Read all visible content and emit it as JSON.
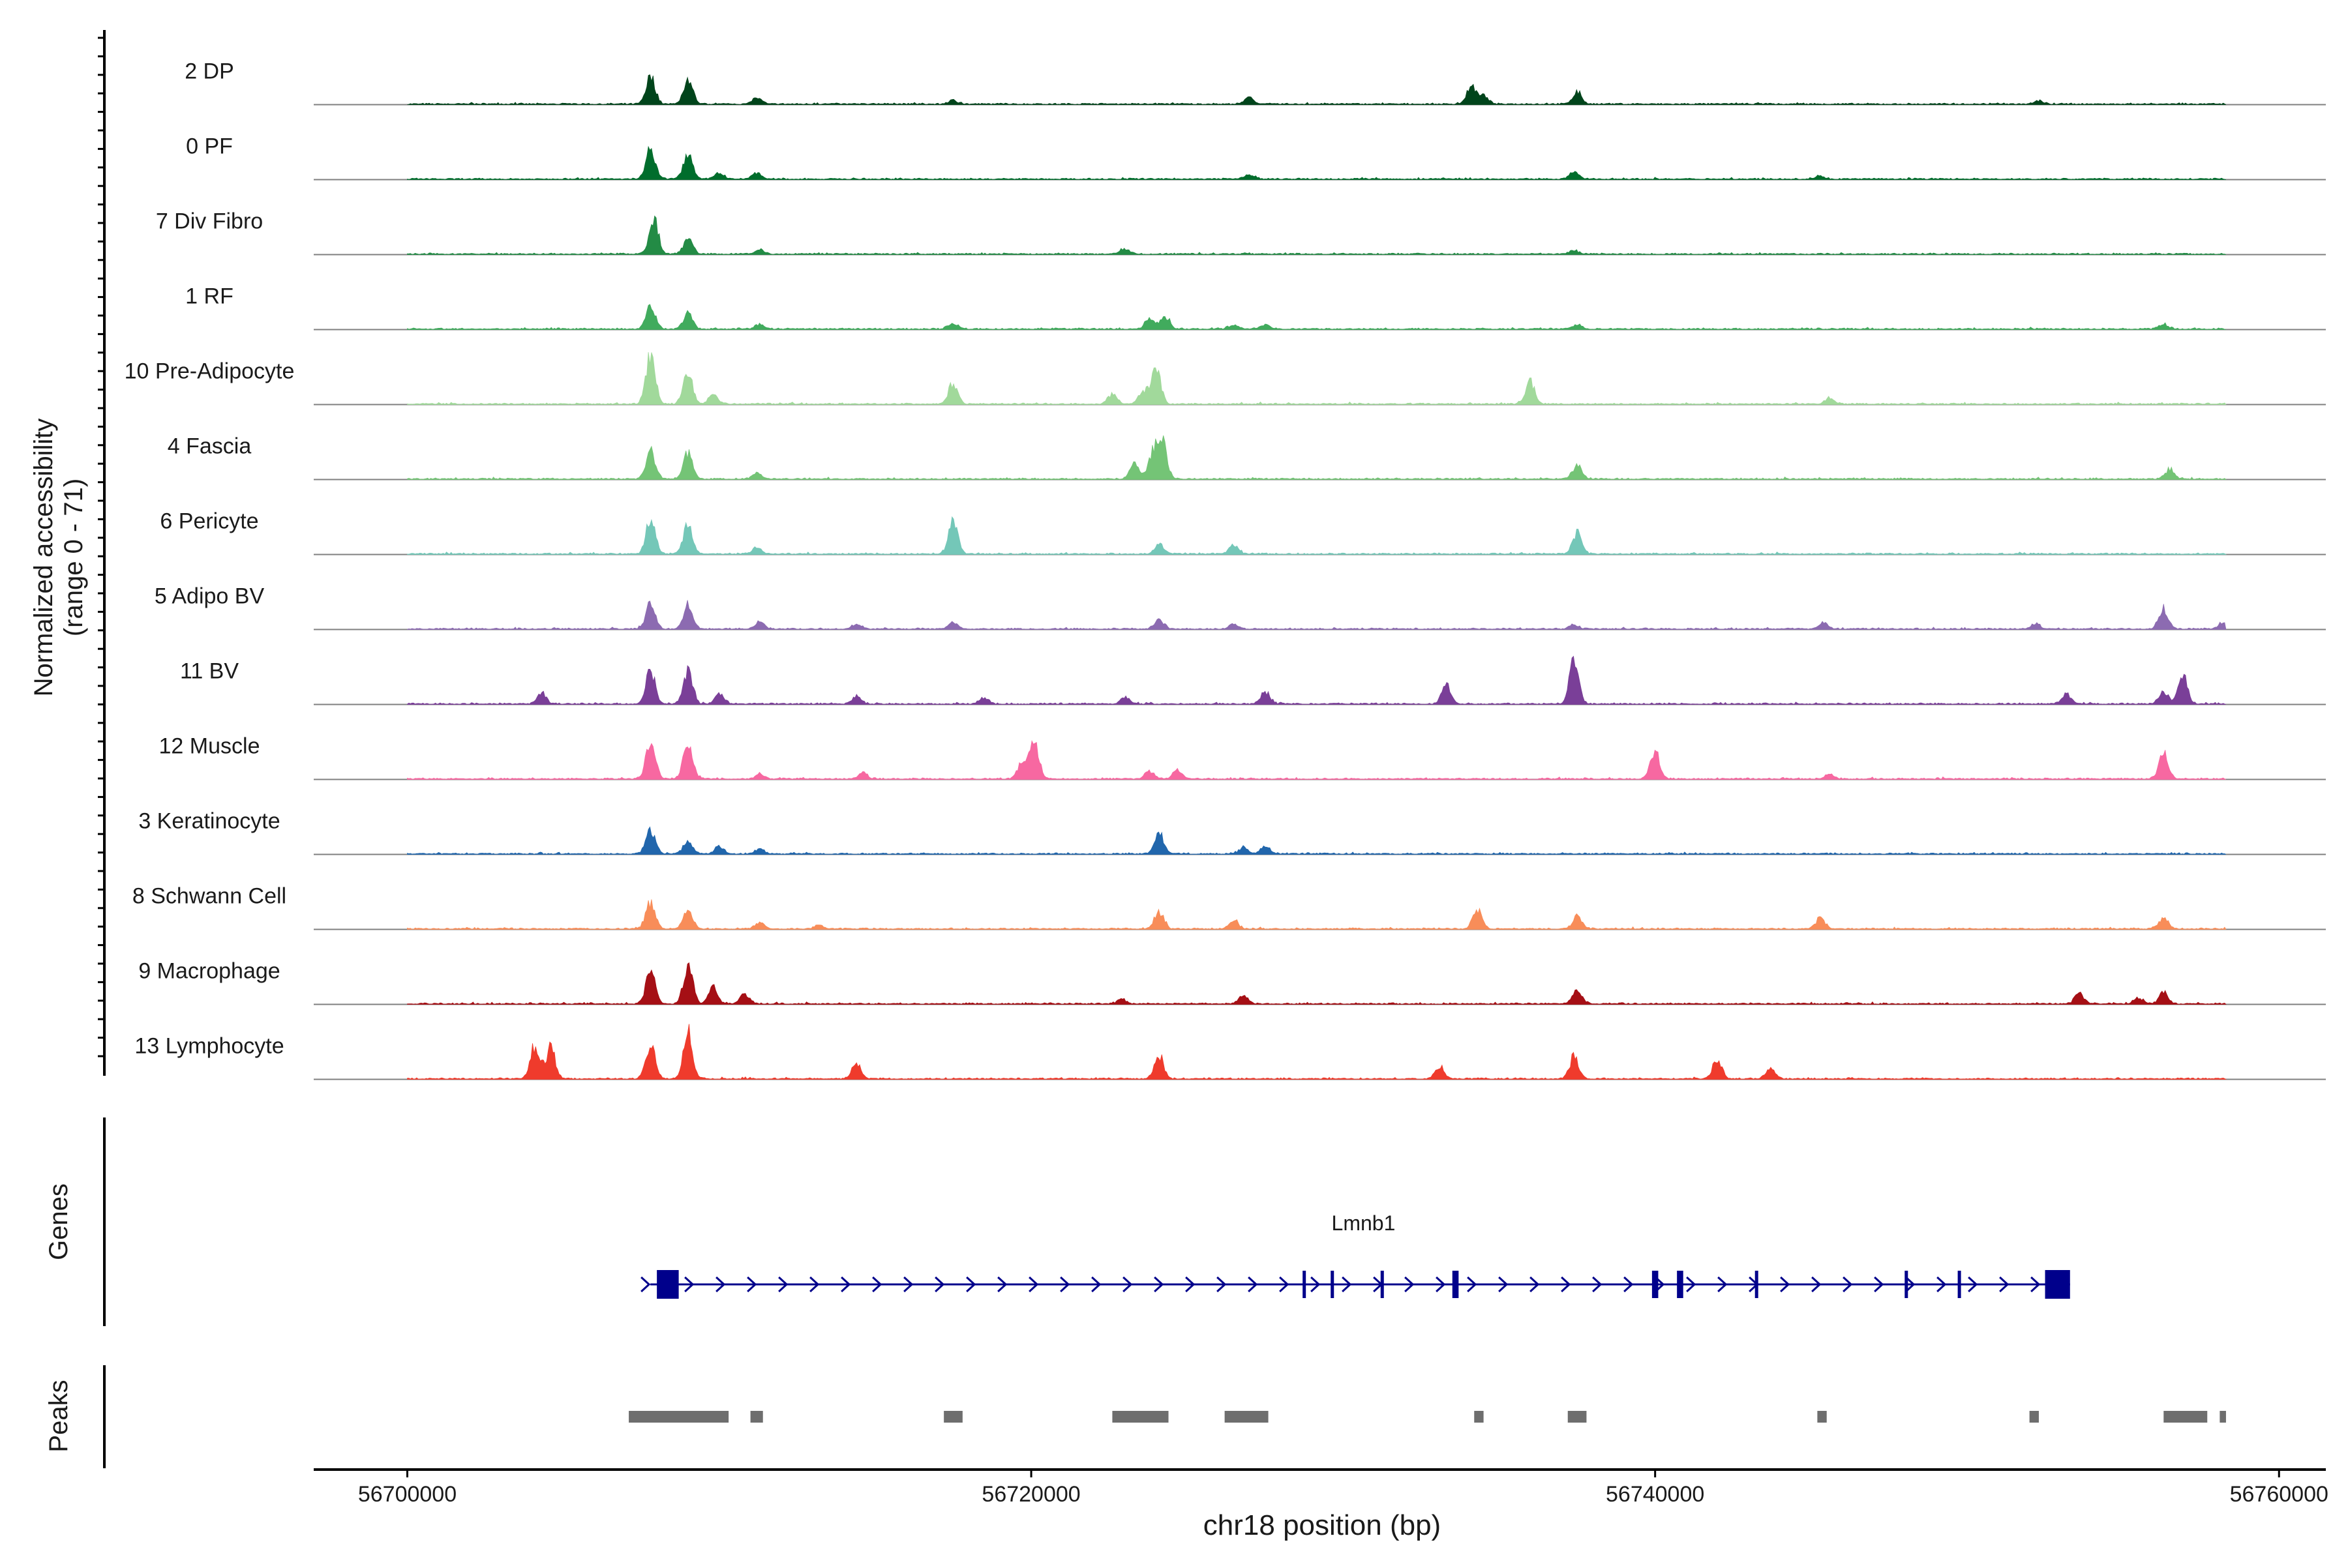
{
  "chart_data": {
    "type": "area",
    "title": "",
    "chromosome": "chr18",
    "xlabel": "chr18 position (bp)",
    "ylabel_line1": "Normalized accessibility",
    "ylabel_line2": "(range 0 - 71)",
    "y_range": [
      0,
      71
    ],
    "xlim": [
      56697000,
      56761500
    ],
    "x_ticks": [
      56700000,
      56720000,
      56740000,
      56760000
    ],
    "x_tick_labels": [
      "56700000",
      "56720000",
      "56740000",
      "56760000"
    ],
    "genes_label": "Genes",
    "peaks_label": "Peaks",
    "track_start": 56700000,
    "track_end": 56758300,
    "tracks": [
      {
        "name": "2 DP",
        "color": "#00441b",
        "peaks": [
          [
            56707800,
            0.9
          ],
          [
            56709000,
            0.8
          ],
          [
            56711200,
            0.2
          ],
          [
            56717500,
            0.12
          ],
          [
            56727000,
            0.2
          ],
          [
            56734100,
            0.55
          ],
          [
            56734500,
            0.25
          ],
          [
            56737500,
            0.4
          ],
          [
            56752300,
            0.1
          ]
        ]
      },
      {
        "name": "0 PF",
        "color": "#006d2c",
        "peaks": [
          [
            56707800,
            1.0
          ],
          [
            56709000,
            0.85
          ],
          [
            56710000,
            0.2
          ],
          [
            56711200,
            0.2
          ],
          [
            56727000,
            0.15
          ],
          [
            56737400,
            0.25
          ],
          [
            56745300,
            0.1
          ]
        ]
      },
      {
        "name": "7 Div Fibro",
        "color": "#238b45",
        "peaks": [
          [
            56707900,
            1.15
          ],
          [
            56709000,
            0.5
          ],
          [
            56711300,
            0.15
          ],
          [
            56723000,
            0.18
          ],
          [
            56737400,
            0.12
          ]
        ]
      },
      {
        "name": "1 RF",
        "color": "#41ab5d",
        "peaks": [
          [
            56707800,
            0.75
          ],
          [
            56709000,
            0.5
          ],
          [
            56711300,
            0.15
          ],
          [
            56717500,
            0.2
          ],
          [
            56723800,
            0.35
          ],
          [
            56724300,
            0.4
          ],
          [
            56726500,
            0.15
          ],
          [
            56727500,
            0.15
          ],
          [
            56737500,
            0.15
          ],
          [
            56756300,
            0.15
          ]
        ]
      },
      {
        "name": "10 Pre-Adipocyte",
        "color": "#a1d99b",
        "peaks": [
          [
            56707800,
            1.6
          ],
          [
            56709000,
            1.0
          ],
          [
            56709800,
            0.3
          ],
          [
            56717500,
            0.7
          ],
          [
            56722600,
            0.3
          ],
          [
            56724000,
            1.25
          ],
          [
            56723600,
            0.4
          ],
          [
            56736000,
            0.7
          ],
          [
            56745600,
            0.2
          ]
        ]
      },
      {
        "name": "4 Fascia",
        "color": "#74c476",
        "peaks": [
          [
            56707800,
            0.95
          ],
          [
            56709000,
            0.85
          ],
          [
            56711200,
            0.2
          ],
          [
            56723300,
            0.5
          ],
          [
            56723900,
            0.8
          ],
          [
            56724200,
            1.3
          ],
          [
            56737500,
            0.45
          ],
          [
            56756500,
            0.3
          ]
        ]
      },
      {
        "name": "6 Pericyte",
        "color": "#74c7b8",
        "peaks": [
          [
            56707800,
            1.1
          ],
          [
            56709000,
            1.0
          ],
          [
            56711200,
            0.2
          ],
          [
            56717500,
            1.05
          ],
          [
            56724100,
            0.35
          ],
          [
            56726500,
            0.3
          ],
          [
            56737500,
            0.7
          ]
        ]
      },
      {
        "name": "5 Adipo BV",
        "color": "#8c6bb1",
        "peaks": [
          [
            56707800,
            0.9
          ],
          [
            56709000,
            0.85
          ],
          [
            56711300,
            0.25
          ],
          [
            56714400,
            0.15
          ],
          [
            56717500,
            0.2
          ],
          [
            56724100,
            0.3
          ],
          [
            56726500,
            0.15
          ],
          [
            56737400,
            0.15
          ],
          [
            56745400,
            0.2
          ],
          [
            56752200,
            0.15
          ],
          [
            56756300,
            0.65
          ],
          [
            56758200,
            0.2
          ]
        ]
      },
      {
        "name": "11 BV",
        "color": "#7a3f98",
        "peaks": [
          [
            56704300,
            0.35
          ],
          [
            56707800,
            1.1
          ],
          [
            56709000,
            1.05
          ],
          [
            56710000,
            0.35
          ],
          [
            56714400,
            0.25
          ],
          [
            56718500,
            0.2
          ],
          [
            56723000,
            0.2
          ],
          [
            56727500,
            0.4
          ],
          [
            56733300,
            0.65
          ],
          [
            56737400,
            1.5
          ],
          [
            56753200,
            0.3
          ],
          [
            56756300,
            0.4
          ],
          [
            56756900,
            0.95
          ]
        ]
      },
      {
        "name": "12 Muscle",
        "color": "#f768a1",
        "peaks": [
          [
            56707800,
            1.25
          ],
          [
            56709000,
            1.15
          ],
          [
            56711300,
            0.15
          ],
          [
            56714600,
            0.2
          ],
          [
            56720100,
            1.25
          ],
          [
            56719700,
            0.5
          ],
          [
            56723800,
            0.25
          ],
          [
            56724700,
            0.3
          ],
          [
            56740000,
            0.9
          ],
          [
            56745600,
            0.15
          ],
          [
            56756300,
            0.85
          ]
        ]
      },
      {
        "name": "3 Keratinocyte",
        "color": "#2166ac",
        "peaks": [
          [
            56707800,
            0.75
          ],
          [
            56709000,
            0.45
          ],
          [
            56710000,
            0.25
          ],
          [
            56711300,
            0.15
          ],
          [
            56724100,
            0.65
          ],
          [
            56726800,
            0.2
          ],
          [
            56727500,
            0.25
          ]
        ]
      },
      {
        "name": "8 Schwann Cell",
        "color": "#f88d59",
        "peaks": [
          [
            56707800,
            0.85
          ],
          [
            56709000,
            0.65
          ],
          [
            56711300,
            0.2
          ],
          [
            56713200,
            0.12
          ],
          [
            56724100,
            0.55
          ],
          [
            56726500,
            0.25
          ],
          [
            56734300,
            0.6
          ],
          [
            56737500,
            0.4
          ],
          [
            56745300,
            0.35
          ],
          [
            56756300,
            0.35
          ]
        ]
      },
      {
        "name": "9 Macrophage",
        "color": "#a50f15",
        "peaks": [
          [
            56707800,
            1.05
          ],
          [
            56709000,
            1.25
          ],
          [
            56709800,
            0.6
          ],
          [
            56710800,
            0.35
          ],
          [
            56722900,
            0.15
          ],
          [
            56726800,
            0.25
          ],
          [
            56737500,
            0.45
          ],
          [
            56753600,
            0.35
          ],
          [
            56756300,
            0.35
          ],
          [
            56755500,
            0.2
          ]
        ]
      },
      {
        "name": "13 Lymphocyte",
        "color": "#ef3b2c",
        "peaks": [
          [
            56704100,
            1.1
          ],
          [
            56704600,
            1.0
          ],
          [
            56707800,
            1.1
          ],
          [
            56709000,
            1.45
          ],
          [
            56714400,
            0.5
          ],
          [
            56724100,
            0.75
          ],
          [
            56737400,
            0.7
          ],
          [
            56733100,
            0.4
          ],
          [
            56743700,
            0.35
          ],
          [
            56742000,
            0.6
          ]
        ]
      }
    ],
    "gene": {
      "name": "Lmnb1",
      "color": "#00008b",
      "start": 56708000,
      "end": 56753300,
      "strand": "+",
      "exons": [
        [
          56708000,
          56708700
        ],
        [
          56728700,
          56728800
        ],
        [
          56729600,
          56729700
        ],
        [
          56731200,
          56731300
        ],
        [
          56733500,
          56733700
        ],
        [
          56739900,
          56740100
        ],
        [
          56740700,
          56740900
        ],
        [
          56743200,
          56743300
        ],
        [
          56748000,
          56748100
        ],
        [
          56749700,
          56749800
        ],
        [
          56752500,
          56753300
        ]
      ]
    },
    "peaks": [
      [
        56707100,
        56710300
      ],
      [
        56711000,
        56711400
      ],
      [
        56717200,
        56717800
      ],
      [
        56722600,
        56724400
      ],
      [
        56726200,
        56727600
      ],
      [
        56734200,
        56734500
      ],
      [
        56737200,
        56737800
      ],
      [
        56745200,
        56745500
      ],
      [
        56752000,
        56752300
      ],
      [
        56756300,
        56757700
      ],
      [
        56758100,
        56758300
      ]
    ]
  }
}
